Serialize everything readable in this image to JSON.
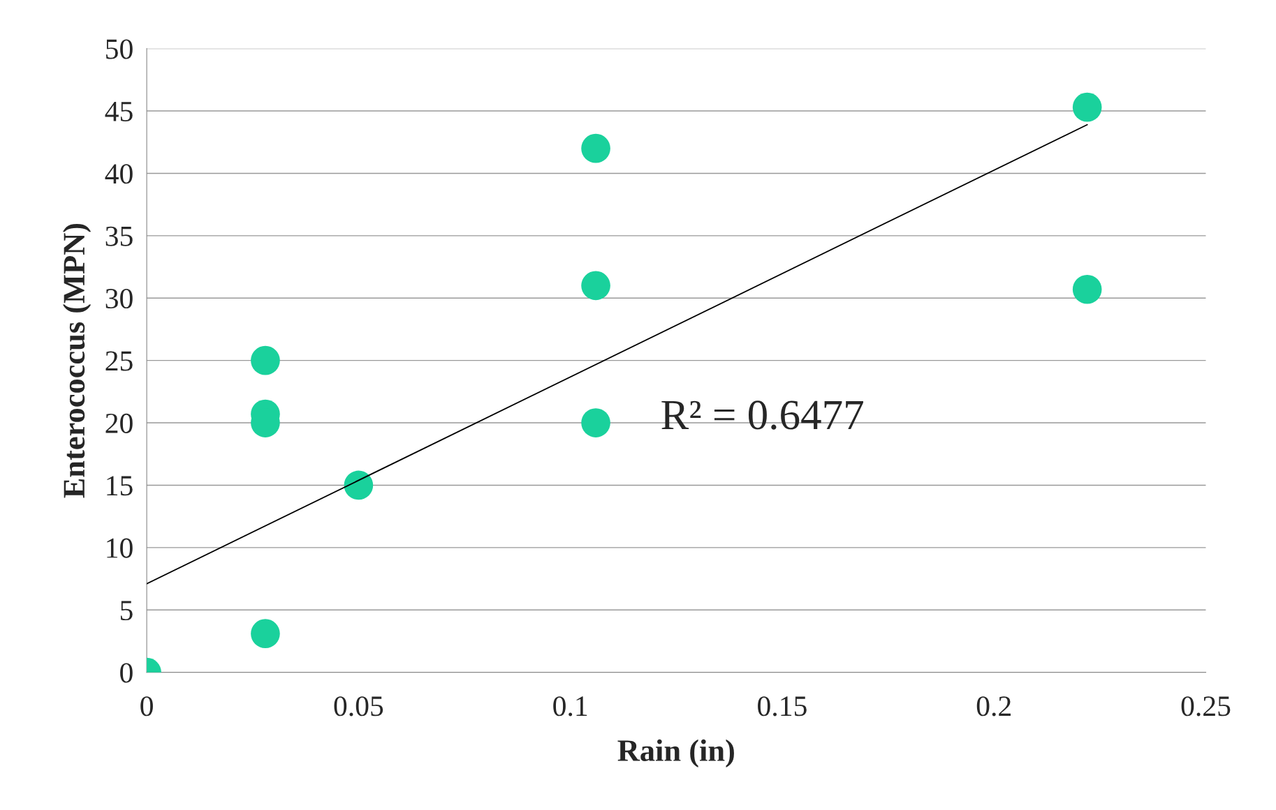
{
  "chart_data": {
    "type": "scatter",
    "xlabel": "Rain (in)",
    "ylabel": "Enterococcus (MPN)",
    "series": [
      {
        "color": "#1ad19c",
        "marker": "circle",
        "x": [
          0,
          0.028,
          0.028,
          0.028,
          0.028,
          0.05,
          0.106,
          0.106,
          0.106,
          0.222,
          0.222
        ],
        "values": [
          0,
          25,
          20.7,
          20,
          3.1,
          15,
          42,
          31,
          20,
          45.3,
          30.7
        ]
      },
      {
        "type": "line",
        "color": "#000000",
        "marker": "none",
        "line_style": "solid",
        "x": [
          0,
          0.222
        ],
        "values": [
          7.1,
          43.9
        ]
      }
    ],
    "annotations": [
      "R² = 0.6477"
    ],
    "xlim": [
      0,
      0.25
    ],
    "xticks": [
      0,
      0.05,
      0.1,
      0.15,
      0.2,
      0.25
    ],
    "ylim": [
      0,
      50
    ],
    "yticks": [
      0,
      5,
      10,
      15,
      20,
      25,
      30,
      35,
      40,
      45,
      50
    ],
    "grid": "y",
    "legend": false
  }
}
